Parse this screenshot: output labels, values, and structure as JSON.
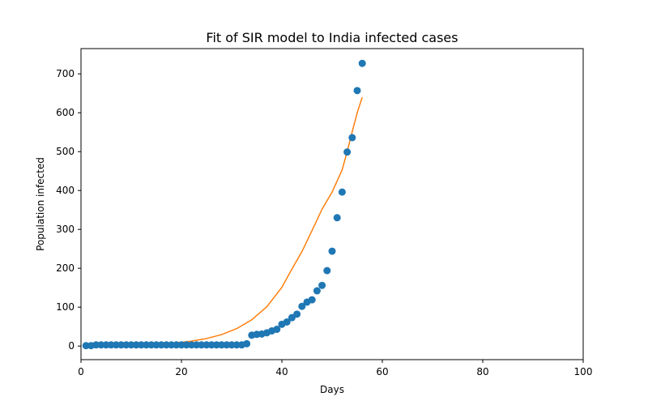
{
  "chart_data": {
    "type": "scatter",
    "title": "Fit of SIR model to India infected cases",
    "xlabel": "Days",
    "ylabel": "Population infected",
    "xlim": [
      0,
      100
    ],
    "ylim": [
      -35,
      765
    ],
    "xticks": [
      0,
      20,
      40,
      60,
      80,
      100
    ],
    "yticks": [
      0,
      100,
      200,
      300,
      400,
      500,
      600,
      700
    ],
    "grid": false,
    "legend": "none",
    "series": [
      {
        "kind": "scatter",
        "color": "#1f77b4",
        "x": [
          1,
          2,
          3,
          4,
          5,
          6,
          7,
          8,
          9,
          10,
          11,
          12,
          13,
          14,
          15,
          16,
          17,
          18,
          19,
          20,
          21,
          22,
          23,
          24,
          25,
          26,
          27,
          28,
          29,
          30,
          31,
          32,
          33,
          34,
          35,
          36,
          37,
          38,
          39,
          40,
          41,
          42,
          43,
          44,
          45,
          46,
          47,
          48,
          49,
          50,
          51,
          52,
          53,
          54,
          55,
          56
        ],
        "y": [
          1,
          1,
          3,
          3,
          3,
          3,
          3,
          3,
          3,
          3,
          3,
          3,
          3,
          3,
          3,
          3,
          3,
          3,
          3,
          3,
          3,
          3,
          3,
          3,
          3,
          3,
          3,
          3,
          3,
          3,
          3,
          3,
          6,
          28,
          30,
          31,
          34,
          39,
          43,
          56,
          62,
          73,
          82,
          102,
          113,
          119,
          142,
          156,
          194,
          244,
          330,
          396,
          499,
          536,
          657,
          727
        ]
      },
      {
        "kind": "line",
        "color": "#ff7f0e",
        "x": [
          1,
          4,
          7,
          10,
          13,
          16,
          19,
          22,
          25,
          28,
          31,
          34,
          37,
          40,
          42,
          44,
          46,
          48,
          50,
          52,
          53,
          54,
          55,
          56
        ],
        "y": [
          0.5,
          0.9,
          1.4,
          2.2,
          3.5,
          5.3,
          8.2,
          12.6,
          19.3,
          29.5,
          44.7,
          67.5,
          101,
          151,
          198,
          243,
          297,
          352,
          396,
          453,
          500,
          551,
          600,
          640
        ]
      }
    ]
  }
}
